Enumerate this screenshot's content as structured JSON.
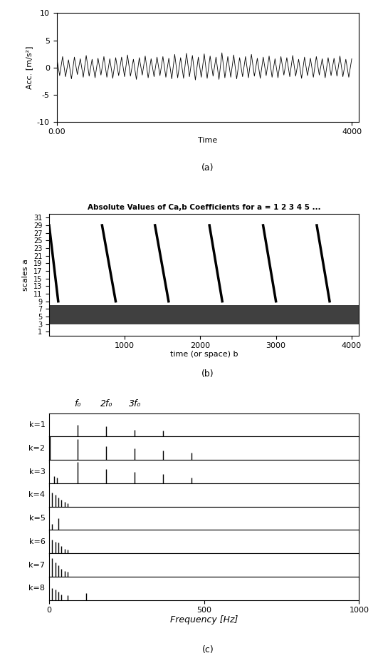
{
  "chart_data": [
    {
      "type": "line",
      "ylabel": "Acc. [m/s²]",
      "xlabel": "Time",
      "caption": "(a)",
      "color": "#000000",
      "xlim": [
        0,
        4100
      ],
      "xticks": [
        {
          "value": 0,
          "label": "0.00"
        },
        4000
      ],
      "ylim": [
        -10,
        10
      ],
      "yticks": [
        -10,
        -5,
        0,
        5,
        10
      ],
      "grid": false,
      "x": [
        0,
        40,
        80,
        120,
        160,
        200,
        240,
        280,
        320,
        360,
        400,
        440,
        480,
        520,
        560,
        600,
        640,
        680,
        720,
        760,
        800,
        840,
        880,
        920,
        960,
        1000,
        1040,
        1080,
        1120,
        1160,
        1200,
        1240,
        1280,
        1320,
        1360,
        1400,
        1440,
        1480,
        1520,
        1560,
        1600,
        1640,
        1680,
        1720,
        1760,
        1800,
        1840,
        1880,
        1920,
        1960,
        2000,
        2040,
        2080,
        2120,
        2160,
        2200,
        2240,
        2280,
        2320,
        2360,
        2400,
        2440,
        2480,
        2520,
        2560,
        2600,
        2640,
        2680,
        2720,
        2760,
        2800,
        2840,
        2880,
        2920,
        2960,
        3000,
        3040,
        3080,
        3120,
        3160,
        3200,
        3240,
        3280,
        3320,
        3360,
        3400,
        3440,
        3480,
        3520,
        3560,
        3600,
        3640,
        3680,
        3720,
        3760,
        3800,
        3840,
        3880,
        3920,
        3960,
        4000
      ],
      "values": [
        1.8,
        -1.5,
        2.0,
        -1.7,
        1.4,
        -2.1,
        1.9,
        -1.3,
        1.6,
        -1.8,
        2.2,
        -1.6,
        1.5,
        -1.9,
        1.7,
        -1.4,
        2.0,
        -1.8,
        1.6,
        -2.0,
        1.8,
        -1.5,
        1.9,
        -1.7,
        2.3,
        -1.6,
        1.5,
        -2.2,
        1.8,
        -1.4,
        2.1,
        -1.9,
        1.6,
        -1.7,
        1.9,
        -1.5,
        2.0,
        -1.8,
        1.7,
        -2.1,
        2.4,
        -1.9,
        1.8,
        -2.0,
        2.6,
        -1.7,
        2.2,
        -2.3,
        1.9,
        -1.8,
        2.5,
        -2.0,
        2.1,
        -1.6,
        1.9,
        -2.2,
        2.7,
        -1.9,
        2.0,
        -1.8,
        2.3,
        -2.1,
        1.8,
        -1.7,
        2.0,
        -1.9,
        2.4,
        -1.6,
        1.7,
        -2.0,
        1.9,
        -1.5,
        2.1,
        -1.8,
        1.6,
        -1.9,
        2.0,
        -1.4,
        1.8,
        -1.7,
        2.2,
        -1.6,
        1.5,
        -2.0,
        1.9,
        -1.5,
        1.7,
        -1.8,
        2.0,
        -1.4,
        1.6,
        -1.9,
        1.8,
        -1.5,
        1.7,
        -1.6,
        2.1,
        -1.7,
        1.5,
        -1.8,
        1.6
      ]
    },
    {
      "type": "scalogram",
      "title": "Absolute Values of Ca,b Coefficients for a = 1 2 3 4 5 ...",
      "xlabel": "time (or space) b",
      "ylabel": "scales a",
      "caption": "(b)",
      "color": "#000000",
      "xlim": [
        0,
        4100
      ],
      "xticks": [
        1000,
        2000,
        3000,
        4000
      ],
      "ylim": [
        0,
        32
      ],
      "yticks": [
        1,
        3,
        5,
        7,
        9,
        11,
        13,
        15,
        17,
        19,
        21,
        23,
        25,
        27,
        29,
        31
      ],
      "band": [
        3,
        8
      ],
      "streaks": [
        {
          "x": [
            0,
            120
          ],
          "y": [
            29,
            9
          ]
        },
        {
          "x": [
            700,
            880
          ],
          "y": [
            29,
            9
          ]
        },
        {
          "x": [
            1400,
            1580
          ],
          "y": [
            29,
            9
          ]
        },
        {
          "x": [
            2120,
            2290
          ],
          "y": [
            29,
            9
          ]
        },
        {
          "x": [
            2830,
            3000
          ],
          "y": [
            29,
            9
          ]
        },
        {
          "x": [
            3540,
            3710
          ],
          "y": [
            29,
            9
          ]
        }
      ]
    },
    {
      "type": "spectra",
      "xlabel": "Frequency [Hz]",
      "caption": "(c)",
      "color": "#000000",
      "xlim": [
        0,
        1000
      ],
      "xticks": [
        0,
        500,
        1000
      ],
      "ylim": [
        0,
        1
      ],
      "tick_labels": "x",
      "annotations": [
        {
          "text": "f₀",
          "x": 92
        },
        {
          "text": "2f₀",
          "x": 184
        },
        {
          "text": "3f₀",
          "x": 276
        }
      ],
      "rows": [
        {
          "label": "k=1",
          "x": [
            92,
            184,
            276,
            368
          ],
          "values": [
            0.5,
            0.45,
            0.3,
            0.25
          ]
        },
        {
          "label": "k=2",
          "x": [
            3,
            92,
            184,
            276,
            368,
            460
          ],
          "values": [
            1.0,
            0.9,
            0.6,
            0.5,
            0.4,
            0.3
          ]
        },
        {
          "label": "k=3",
          "x": [
            15,
            25,
            92,
            184,
            276,
            368,
            460
          ],
          "values": [
            0.3,
            0.25,
            0.9,
            0.6,
            0.5,
            0.4,
            0.25
          ]
        },
        {
          "label": "k=4",
          "x": [
            10,
            20,
            30,
            40,
            50,
            60
          ],
          "values": [
            0.6,
            0.5,
            0.4,
            0.3,
            0.2,
            0.15
          ]
        },
        {
          "label": "k=5",
          "x": [
            10,
            30
          ],
          "values": [
            0.25,
            0.5
          ]
        },
        {
          "label": "k=6",
          "x": [
            10,
            20,
            30,
            40,
            50,
            60
          ],
          "values": [
            0.6,
            0.5,
            0.45,
            0.3,
            0.2,
            0.15
          ]
        },
        {
          "label": "k=7",
          "x": [
            10,
            20,
            30,
            40,
            50,
            60
          ],
          "values": [
            0.8,
            0.6,
            0.5,
            0.35,
            0.25,
            0.2
          ]
        },
        {
          "label": "k=8",
          "x": [
            10,
            20,
            30,
            40,
            60,
            120
          ],
          "values": [
            0.5,
            0.45,
            0.35,
            0.25,
            0.2,
            0.3
          ]
        }
      ]
    }
  ]
}
